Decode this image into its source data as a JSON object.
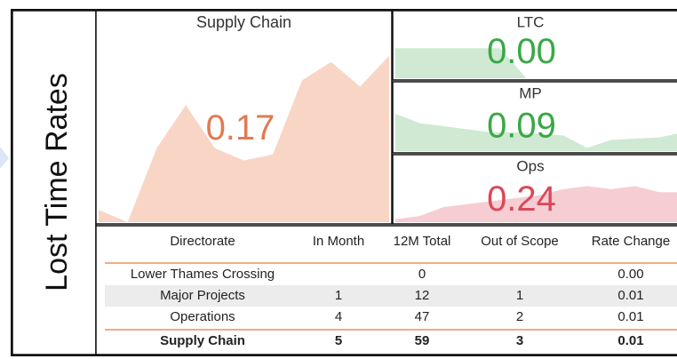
{
  "side_title": "Lost Time Rates",
  "panels": [
    {
      "title": "Supply Chain",
      "value": "0.17",
      "trend": [
        0.02,
        0.0,
        0.12,
        0.19,
        0.12,
        0.1,
        0.11,
        0.23,
        0.26,
        0.22,
        0.27
      ],
      "trend_ylim": [
        0,
        0.3
      ],
      "color": "#f9d5c6",
      "value_color": "#e07b52"
    },
    {
      "title": "LTC",
      "value": "0.00",
      "trend": [
        0.5,
        0.5,
        0.5,
        0.5,
        0.5,
        0.0,
        0.0,
        0.0,
        0.0,
        0.0,
        0.0,
        0.0
      ],
      "trend_ylim": [
        0,
        0.8
      ],
      "color": "#cfe9d3",
      "value_color": "#3aa845"
    },
    {
      "title": "MP",
      "value": "0.09",
      "trend": [
        0.6,
        0.45,
        0.4,
        0.35,
        0.3,
        0.3,
        0.28,
        0.25,
        0.05,
        0.18,
        0.2,
        0.22,
        0.3
      ],
      "trend_ylim": [
        0,
        0.8
      ],
      "color": "#cfe9d3",
      "value_color": "#3aa845"
    },
    {
      "title": "Ops",
      "value": "0.24",
      "trend": [
        0.05,
        0.1,
        0.25,
        0.3,
        0.35,
        0.4,
        0.45,
        0.55,
        0.6,
        0.55,
        0.6,
        0.5,
        0.5
      ],
      "trend_ylim": [
        0,
        0.8
      ],
      "color": "#f6cdd2",
      "value_color": "#d9485a"
    }
  ],
  "table": {
    "columns": [
      "Directorate",
      "In Month",
      "12M Total",
      "Out of Scope",
      "Rate Change"
    ],
    "rows": [
      [
        "Lower Thames Crossing",
        null,
        "0",
        null,
        "0.00"
      ],
      [
        "Major Projects",
        "1",
        "12",
        "1",
        "0.01"
      ],
      [
        "Operations",
        "4",
        "47",
        "2",
        "0.01"
      ]
    ],
    "total": [
      "Supply Chain",
      "5",
      "59",
      "3",
      "0.01"
    ]
  }
}
